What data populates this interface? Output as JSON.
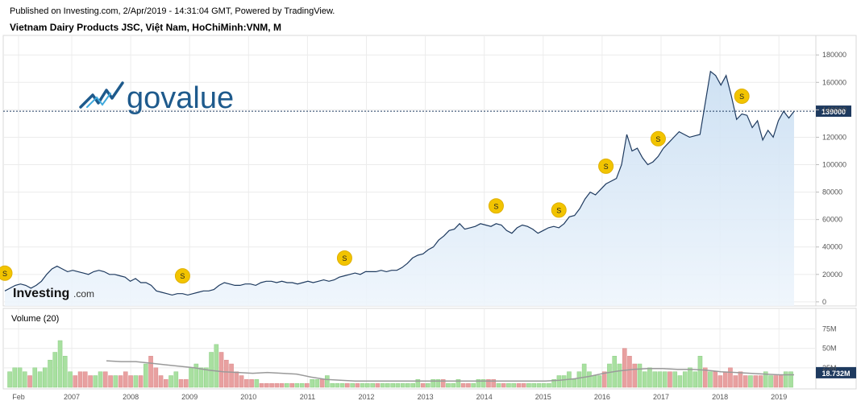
{
  "header": {
    "published": "Published on Investing.com, 2/Apr/2019 - 14:31:04 GMT, Powered by TradingView.",
    "title": "Vietnam Dairy Products JSC, Việt Nam, HoChiMinh:VNM, M"
  },
  "logos": {
    "govalue": "govalue",
    "investing_main": "Investing",
    "investing_suffix": ".com"
  },
  "colors": {
    "price_line": "#1e3a5f",
    "price_fill": "#d6e8f7",
    "vol_up": "#a8e0a0",
    "vol_down": "#e8a0a0",
    "vol_ma": "#9a9a9a",
    "last_price_badge": "#1e3a5f",
    "last_volume_badge": "#1e3a5f",
    "dividend_marker": "#f2c400",
    "govalue_text": "#1e5a8c"
  },
  "chart_data": [
    {
      "type": "area",
      "title": "Vietnam Dairy Products JSC, Việt Nam, HoChiMinh:VNM, M",
      "x_ticks": [
        "Feb",
        "2007",
        "2008",
        "2009",
        "2010",
        "2011",
        "2012",
        "2013",
        "2014",
        "2015",
        "2016",
        "2017",
        "2018",
        "2019"
      ],
      "y_ticks": [
        0,
        20000,
        40000,
        60000,
        80000,
        100000,
        120000,
        140000,
        160000,
        180000
      ],
      "ylim": [
        -3000,
        186000
      ],
      "last_price": "139000",
      "grid": true,
      "series": [
        {
          "values": [
            8000,
            10000,
            12000,
            13000,
            12000,
            10000,
            12000,
            15000,
            20000,
            24000,
            26000,
            24000,
            22000,
            23000,
            22000,
            21000,
            20000,
            22000,
            23000,
            22000,
            20000,
            20000,
            19000,
            18000,
            15000,
            17000,
            14000,
            14000,
            12000,
            8000,
            7000,
            6000,
            5000,
            6000,
            6000,
            5000,
            6000,
            7000,
            8000,
            8000,
            9000,
            12000,
            14000,
            13000,
            12000,
            12000,
            13000,
            13000,
            12000,
            14000,
            15000,
            15000,
            14000,
            15000,
            14000,
            14000,
            13000,
            14000,
            15000,
            14000,
            15000,
            16000,
            15000,
            16000,
            18000,
            19000,
            20000,
            21000,
            20000,
            22000,
            22000,
            22000,
            23000,
            22000,
            23000,
            23000,
            25000,
            28000,
            32000,
            34000,
            35000,
            38000,
            40000,
            45000,
            48000,
            52000,
            53000,
            57000,
            53000,
            54000,
            55000,
            57000,
            56000,
            55000,
            57000,
            56000,
            52000,
            50000,
            54000,
            56000,
            55000,
            53000,
            50000,
            52000,
            54000,
            55000,
            54000,
            57000,
            62000,
            63000,
            68000,
            75000,
            80000,
            78000,
            82000,
            86000,
            88000,
            90000,
            100000,
            122000,
            110000,
            112000,
            105000,
            100000,
            102000,
            106000,
            112000,
            116000,
            120000,
            124000,
            122000,
            120000,
            121000,
            122000,
            145000,
            168000,
            165000,
            158000,
            165000,
            150000,
            133000,
            137000,
            136000,
            127000,
            132000,
            118000,
            125000,
            120000,
            132000,
            139000,
            134000,
            139000
          ],
          "dividend_x_ticks": [
            0.0,
            2.7,
            5.2,
            7.5,
            8.5,
            9.2,
            10.0,
            11.3
          ]
        }
      ]
    },
    {
      "type": "bar",
      "title": "Volume (20)",
      "y_ticks_labels": [
        "25M",
        "50M",
        "75M"
      ],
      "y_ticks": [
        25,
        50,
        75
      ],
      "ylim": [
        0,
        90
      ],
      "last_volume": "18.732M",
      "series": [
        {
          "name": "Volume",
          "values": [
            20,
            25,
            25,
            20,
            15,
            25,
            20,
            25,
            35,
            45,
            60,
            40,
            20,
            15,
            20,
            20,
            15,
            15,
            20,
            20,
            15,
            15,
            15,
            20,
            15,
            15,
            15,
            30,
            40,
            25,
            15,
            10,
            15,
            20,
            10,
            10,
            25,
            30,
            25,
            25,
            45,
            55,
            45,
            35,
            30,
            20,
            15,
            10,
            10,
            10,
            5,
            5,
            5,
            5,
            5,
            5,
            5,
            5,
            5,
            5,
            10,
            10,
            10,
            15,
            5,
            5,
            5,
            5,
            5,
            5,
            5,
            5,
            5,
            5,
            5,
            5,
            5,
            5,
            5,
            5,
            5,
            10,
            5,
            5,
            10,
            10,
            10,
            5,
            5,
            10,
            5,
            5,
            5,
            10,
            10,
            10,
            10,
            5,
            5,
            5,
            5,
            5,
            5,
            5,
            5,
            5,
            5,
            5,
            10,
            15,
            15,
            20,
            10,
            20,
            30,
            20,
            15,
            15,
            20,
            30,
            40,
            30,
            50,
            40,
            30,
            30,
            20,
            25,
            20,
            20,
            20,
            20,
            20,
            15,
            20,
            25,
            20,
            40,
            25,
            20,
            20,
            15,
            20,
            25,
            15,
            20,
            15,
            15,
            15,
            15,
            20,
            15,
            15,
            15,
            20,
            20
          ],
          "up": [
            1,
            1,
            1,
            1,
            0,
            1,
            1,
            1,
            1,
            1,
            1,
            1,
            1,
            0,
            0,
            0,
            0,
            1,
            1,
            0,
            0,
            1,
            0,
            0,
            0,
            1,
            0,
            1,
            0,
            0,
            0,
            0,
            1,
            1,
            0,
            0,
            1,
            1,
            1,
            1,
            1,
            1,
            0,
            0,
            0,
            0,
            0,
            0,
            0,
            1,
            0,
            0,
            0,
            0,
            0,
            1,
            0,
            1,
            1,
            0,
            1,
            1,
            0,
            1,
            1,
            1,
            1,
            0,
            1,
            0,
            1,
            1,
            1,
            0,
            1,
            1,
            1,
            1,
            1,
            1,
            1,
            1,
            0,
            1,
            1,
            1,
            0,
            1,
            1,
            1,
            0,
            0,
            1,
            1,
            1,
            0,
            0,
            1,
            0,
            1,
            1,
            0,
            0,
            1,
            1,
            1,
            1,
            1,
            1,
            1,
            1,
            1,
            1,
            1,
            1,
            1,
            1,
            1,
            0,
            1,
            1,
            1,
            0,
            0,
            0,
            1,
            1,
            1,
            1,
            1,
            1,
            0,
            1,
            1,
            1,
            1,
            1,
            1,
            0,
            1,
            0,
            0,
            0,
            0,
            0,
            0,
            0,
            1,
            0,
            0,
            1,
            1,
            0,
            0,
            1,
            1
          ]
        },
        {
          "name": "MA",
          "values": [
            34,
            33,
            33,
            31,
            29,
            27,
            25,
            22,
            20,
            19,
            18,
            19,
            18,
            17,
            13,
            10,
            9,
            8,
            8,
            8,
            8,
            8,
            8,
            8,
            8,
            8,
            8,
            8,
            8,
            8,
            8,
            9,
            11,
            14,
            18,
            21,
            23,
            24,
            24,
            23,
            23,
            22,
            20,
            19,
            18,
            17,
            16,
            16
          ]
        }
      ]
    }
  ]
}
